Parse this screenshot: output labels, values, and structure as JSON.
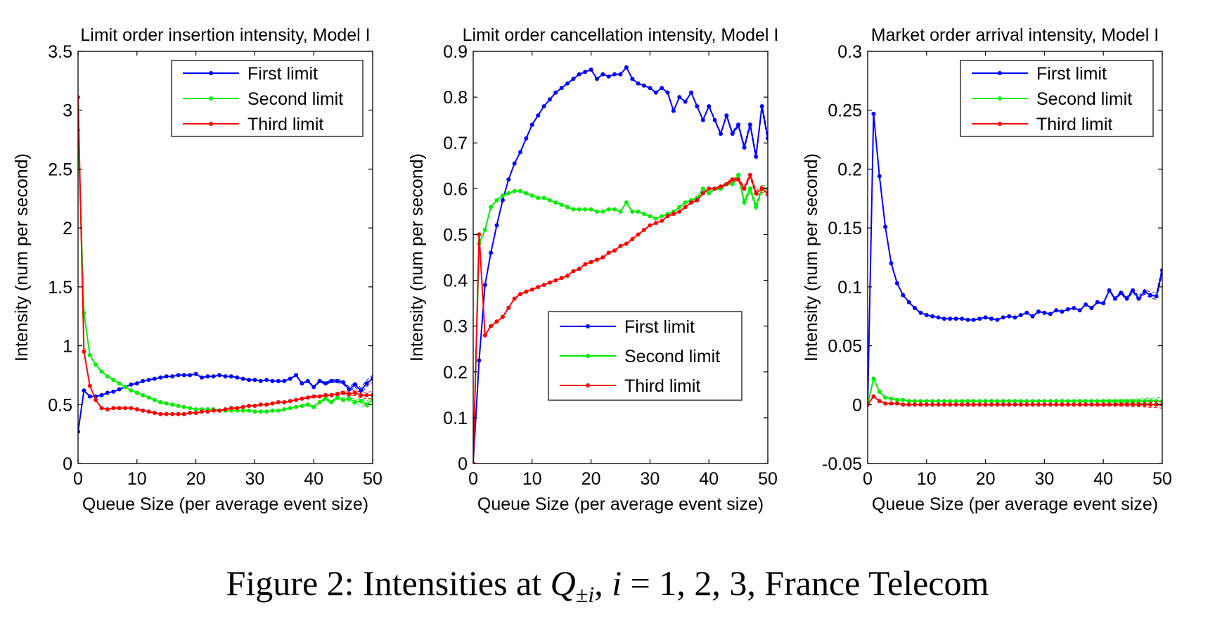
{
  "caption": {
    "prefix": "Figure 2: Intensities at ",
    "Q": "Q",
    "sub": "±i",
    "comma": ", ",
    "i": "i",
    "rest": " = 1,  2,  3, France Telecom"
  },
  "chart_data": [
    {
      "type": "line",
      "title": "Limit order insertion intensity, Model I",
      "xlabel": "Queue Size (per average event size)",
      "ylabel": "Intensity (num per second)",
      "xlim": [
        0,
        50
      ],
      "ylim": [
        0,
        3.5
      ],
      "xticks": [
        0,
        10,
        20,
        30,
        40,
        50
      ],
      "yticks": [
        0,
        0.5,
        1,
        1.5,
        2,
        2.5,
        3,
        3.5
      ],
      "ytick_labels": [
        "0",
        "0.5",
        "1",
        "1.5",
        "2",
        "2.5",
        "3",
        "3.5"
      ],
      "legend_position": "top-right",
      "series": [
        {
          "name": "First limit",
          "color": "#0000ff",
          "x": [
            0,
            1,
            2,
            3,
            4,
            5,
            6,
            7,
            8,
            9,
            10,
            11,
            12,
            13,
            14,
            15,
            16,
            17,
            18,
            19,
            20,
            21,
            22,
            23,
            24,
            25,
            26,
            27,
            28,
            29,
            30,
            31,
            32,
            33,
            34,
            35,
            36,
            37,
            38,
            39,
            40,
            41,
            42,
            43,
            44,
            45,
            46,
            47,
            48,
            49,
            50
          ],
          "y": [
            0.27,
            0.62,
            0.57,
            0.57,
            0.58,
            0.6,
            0.61,
            0.63,
            0.65,
            0.67,
            0.68,
            0.7,
            0.71,
            0.72,
            0.73,
            0.74,
            0.74,
            0.75,
            0.75,
            0.75,
            0.76,
            0.73,
            0.74,
            0.74,
            0.75,
            0.74,
            0.74,
            0.73,
            0.72,
            0.71,
            0.71,
            0.7,
            0.71,
            0.7,
            0.7,
            0.7,
            0.72,
            0.75,
            0.68,
            0.7,
            0.65,
            0.7,
            0.68,
            0.7,
            0.7,
            0.69,
            0.63,
            0.67,
            0.62,
            0.68,
            0.72
          ]
        },
        {
          "name": "Second limit",
          "color": "#00ee00",
          "x": [
            0,
            1,
            2,
            3,
            4,
            5,
            6,
            7,
            8,
            9,
            10,
            11,
            12,
            13,
            14,
            15,
            16,
            17,
            18,
            19,
            20,
            21,
            22,
            23,
            24,
            25,
            26,
            27,
            28,
            29,
            30,
            31,
            32,
            33,
            34,
            35,
            36,
            37,
            38,
            39,
            40,
            41,
            42,
            43,
            44,
            45,
            46,
            47,
            48,
            49,
            50
          ],
          "y": [
            2.83,
            1.28,
            0.92,
            0.84,
            0.78,
            0.74,
            0.71,
            0.68,
            0.65,
            0.62,
            0.6,
            0.58,
            0.56,
            0.54,
            0.52,
            0.51,
            0.5,
            0.49,
            0.48,
            0.47,
            0.46,
            0.46,
            0.46,
            0.46,
            0.45,
            0.45,
            0.45,
            0.45,
            0.45,
            0.45,
            0.44,
            0.44,
            0.44,
            0.45,
            0.45,
            0.46,
            0.47,
            0.48,
            0.49,
            0.5,
            0.48,
            0.52,
            0.55,
            0.52,
            0.56,
            0.54,
            0.55,
            0.52,
            0.53,
            0.5,
            0.54
          ]
        },
        {
          "name": "Third limit",
          "color": "#ff0000",
          "x": [
            0,
            1,
            2,
            3,
            4,
            5,
            6,
            7,
            8,
            9,
            10,
            11,
            12,
            13,
            14,
            15,
            16,
            17,
            18,
            19,
            20,
            21,
            22,
            23,
            24,
            25,
            26,
            27,
            28,
            29,
            30,
            31,
            32,
            33,
            34,
            35,
            36,
            37,
            38,
            39,
            40,
            41,
            42,
            43,
            44,
            45,
            46,
            47,
            48,
            49,
            50
          ],
          "y": [
            3.11,
            0.95,
            0.66,
            0.54,
            0.47,
            0.46,
            0.47,
            0.47,
            0.47,
            0.47,
            0.46,
            0.45,
            0.44,
            0.43,
            0.42,
            0.42,
            0.42,
            0.42,
            0.42,
            0.43,
            0.43,
            0.44,
            0.44,
            0.45,
            0.45,
            0.46,
            0.47,
            0.47,
            0.48,
            0.49,
            0.49,
            0.5,
            0.5,
            0.51,
            0.52,
            0.52,
            0.53,
            0.54,
            0.55,
            0.56,
            0.57,
            0.57,
            0.58,
            0.58,
            0.59,
            0.6,
            0.59,
            0.6,
            0.58,
            0.58,
            0.58
          ]
        }
      ]
    },
    {
      "type": "line",
      "title": "Limit order cancellation intensity, Model I",
      "xlabel": "Queue Size (per average event size)",
      "ylabel": "Intensity (num per second)",
      "xlim": [
        0,
        50
      ],
      "ylim": [
        0,
        0.9
      ],
      "xticks": [
        0,
        10,
        20,
        30,
        40,
        50
      ],
      "yticks": [
        0,
        0.1,
        0.2,
        0.3,
        0.4,
        0.5,
        0.6,
        0.7,
        0.8,
        0.9
      ],
      "ytick_labels": [
        "0",
        "0.1",
        "0.2",
        "0.3",
        "0.4",
        "0.5",
        "0.6",
        "0.7",
        "0.8",
        "0.9"
      ],
      "legend_position": "bottom-right",
      "series": [
        {
          "name": "First limit",
          "color": "#0000ff",
          "x": [
            0,
            1,
            2,
            3,
            4,
            5,
            6,
            7,
            8,
            9,
            10,
            11,
            12,
            13,
            14,
            15,
            16,
            17,
            18,
            19,
            20,
            21,
            22,
            23,
            24,
            25,
            26,
            27,
            28,
            29,
            30,
            31,
            32,
            33,
            34,
            35,
            36,
            37,
            38,
            39,
            40,
            41,
            42,
            43,
            44,
            45,
            46,
            47,
            48,
            49,
            50
          ],
          "y": [
            0,
            0.225,
            0.39,
            0.46,
            0.52,
            0.575,
            0.62,
            0.655,
            0.68,
            0.71,
            0.74,
            0.76,
            0.78,
            0.795,
            0.81,
            0.82,
            0.83,
            0.84,
            0.85,
            0.855,
            0.86,
            0.84,
            0.85,
            0.845,
            0.85,
            0.85,
            0.865,
            0.84,
            0.83,
            0.825,
            0.82,
            0.81,
            0.82,
            0.81,
            0.77,
            0.8,
            0.79,
            0.81,
            0.78,
            0.75,
            0.78,
            0.75,
            0.72,
            0.76,
            0.72,
            0.74,
            0.69,
            0.74,
            0.67,
            0.78,
            0.71
          ]
        },
        {
          "name": "Second limit",
          "color": "#00ee00",
          "x": [
            0,
            1,
            2,
            3,
            4,
            5,
            6,
            7,
            8,
            9,
            10,
            11,
            12,
            13,
            14,
            15,
            16,
            17,
            18,
            19,
            20,
            21,
            22,
            23,
            24,
            25,
            26,
            27,
            28,
            29,
            30,
            31,
            32,
            33,
            34,
            35,
            36,
            37,
            38,
            39,
            40,
            41,
            42,
            43,
            44,
            45,
            46,
            47,
            48,
            49,
            50
          ],
          "y": [
            0,
            0.48,
            0.51,
            0.56,
            0.575,
            0.585,
            0.59,
            0.595,
            0.595,
            0.59,
            0.585,
            0.58,
            0.58,
            0.575,
            0.57,
            0.565,
            0.56,
            0.555,
            0.555,
            0.555,
            0.555,
            0.55,
            0.55,
            0.555,
            0.555,
            0.55,
            0.57,
            0.55,
            0.55,
            0.545,
            0.54,
            0.535,
            0.54,
            0.545,
            0.55,
            0.56,
            0.57,
            0.575,
            0.58,
            0.6,
            0.59,
            0.6,
            0.6,
            0.61,
            0.61,
            0.63,
            0.57,
            0.6,
            0.56,
            0.6,
            0.6
          ]
        },
        {
          "name": "Third limit",
          "color": "#ff0000",
          "x": [
            0,
            1,
            2,
            3,
            4,
            5,
            6,
            7,
            8,
            9,
            10,
            11,
            12,
            13,
            14,
            15,
            16,
            17,
            18,
            19,
            20,
            21,
            22,
            23,
            24,
            25,
            26,
            27,
            28,
            29,
            30,
            31,
            32,
            33,
            34,
            35,
            36,
            37,
            38,
            39,
            40,
            41,
            42,
            43,
            44,
            45,
            46,
            47,
            48,
            49,
            50
          ],
          "y": [
            0,
            0.5,
            0.28,
            0.3,
            0.31,
            0.32,
            0.34,
            0.36,
            0.37,
            0.375,
            0.38,
            0.385,
            0.39,
            0.395,
            0.4,
            0.405,
            0.41,
            0.42,
            0.425,
            0.435,
            0.44,
            0.445,
            0.45,
            0.46,
            0.465,
            0.475,
            0.48,
            0.49,
            0.5,
            0.51,
            0.52,
            0.525,
            0.53,
            0.54,
            0.545,
            0.55,
            0.56,
            0.57,
            0.575,
            0.59,
            0.6,
            0.6,
            0.605,
            0.61,
            0.62,
            0.62,
            0.6,
            0.63,
            0.59,
            0.6,
            0.59
          ]
        }
      ]
    },
    {
      "type": "line",
      "title": "Market order arrival intensity, Model I",
      "xlabel": "Queue Size (per average event size)",
      "ylabel": "Intensity (num per second)",
      "xlim": [
        0,
        50
      ],
      "ylim": [
        -0.05,
        0.3
      ],
      "xticks": [
        0,
        10,
        20,
        30,
        40,
        50
      ],
      "yticks": [
        -0.05,
        0,
        0.05,
        0.1,
        0.15,
        0.2,
        0.25,
        0.3
      ],
      "ytick_labels": [
        "-0.05",
        "0",
        "0.05",
        "0.1",
        "0.15",
        "0.2",
        "0.25",
        "0.3"
      ],
      "legend_position": "top-right",
      "series": [
        {
          "name": "First limit",
          "color": "#0000ff",
          "x": [
            0,
            1,
            2,
            3,
            4,
            5,
            6,
            7,
            8,
            9,
            10,
            11,
            12,
            13,
            14,
            15,
            16,
            17,
            18,
            19,
            20,
            21,
            22,
            23,
            24,
            25,
            26,
            27,
            28,
            29,
            30,
            31,
            32,
            33,
            34,
            35,
            36,
            37,
            38,
            39,
            40,
            41,
            42,
            43,
            44,
            45,
            46,
            47,
            48,
            49,
            50
          ],
          "y": [
            0,
            0.247,
            0.194,
            0.151,
            0.12,
            0.103,
            0.093,
            0.087,
            0.082,
            0.078,
            0.076,
            0.075,
            0.074,
            0.073,
            0.073,
            0.073,
            0.073,
            0.072,
            0.072,
            0.073,
            0.074,
            0.073,
            0.072,
            0.074,
            0.075,
            0.074,
            0.076,
            0.078,
            0.075,
            0.079,
            0.078,
            0.077,
            0.08,
            0.079,
            0.081,
            0.082,
            0.08,
            0.085,
            0.082,
            0.087,
            0.086,
            0.097,
            0.09,
            0.095,
            0.09,
            0.097,
            0.09,
            0.096,
            0.093,
            0.092,
            0.114
          ]
        },
        {
          "name": "Second limit",
          "color": "#00ee00",
          "x": [
            0,
            1,
            2,
            3,
            4,
            5,
            6,
            7,
            8,
            9,
            10,
            11,
            12,
            13,
            14,
            15,
            16,
            17,
            18,
            19,
            20,
            21,
            22,
            23,
            24,
            25,
            26,
            27,
            28,
            29,
            30,
            31,
            32,
            33,
            34,
            35,
            36,
            37,
            38,
            39,
            40,
            41,
            42,
            43,
            44,
            45,
            46,
            47,
            48,
            49,
            50
          ],
          "y": [
            0,
            0.022,
            0.011,
            0.006,
            0.005,
            0.004,
            0.004,
            0.003,
            0.003,
            0.003,
            0.003,
            0.003,
            0.003,
            0.003,
            0.003,
            0.003,
            0.003,
            0.003,
            0.003,
            0.003,
            0.003,
            0.003,
            0.003,
            0.003,
            0.003,
            0.003,
            0.003,
            0.003,
            0.003,
            0.003,
            0.003,
            0.003,
            0.003,
            0.003,
            0.003,
            0.003,
            0.003,
            0.003,
            0.003,
            0.003,
            0.003,
            0.003,
            0.003,
            0.003,
            0.003,
            0.003,
            0.003,
            0.003,
            0.003,
            0.003,
            0.003
          ]
        },
        {
          "name": "Third limit",
          "color": "#ff0000",
          "x": [
            0,
            1,
            2,
            3,
            4,
            5,
            6,
            7,
            8,
            9,
            10,
            11,
            12,
            13,
            14,
            15,
            16,
            17,
            18,
            19,
            20,
            21,
            22,
            23,
            24,
            25,
            26,
            27,
            28,
            29,
            30,
            31,
            32,
            33,
            34,
            35,
            36,
            37,
            38,
            39,
            40,
            41,
            42,
            43,
            44,
            45,
            46,
            47,
            48,
            49,
            50
          ],
          "y": [
            0,
            0.007,
            0.003,
            0.001,
            0.001,
            0.001,
            0,
            0,
            0,
            0,
            0,
            0,
            0,
            0,
            0,
            0,
            0,
            0,
            0,
            0,
            0,
            0,
            0,
            0,
            0,
            0,
            0,
            0,
            0,
            0,
            0,
            0,
            0,
            0,
            0,
            0,
            0,
            0,
            0,
            0,
            0,
            0,
            0,
            0,
            0,
            0,
            0,
            0,
            0,
            0,
            0
          ]
        }
      ]
    }
  ]
}
